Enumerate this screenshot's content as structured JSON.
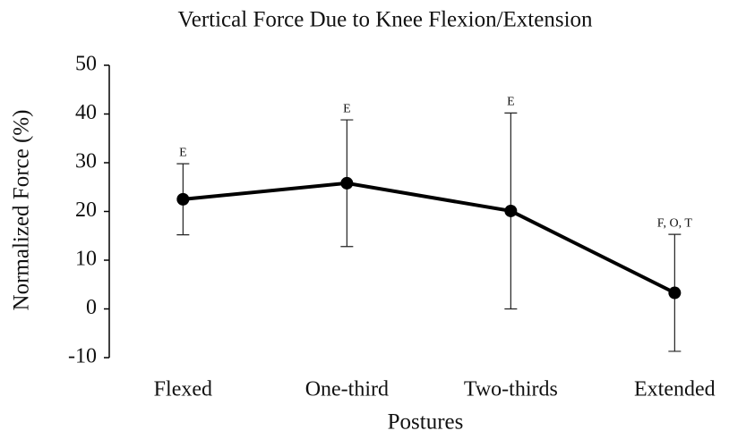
{
  "chart_data": {
    "type": "line",
    "title": "Vertical Force Due to Knee Flexion/Extension",
    "xlabel": "Postures",
    "ylabel": "Normalized Force (%)",
    "categories": [
      "Flexed",
      "One-third",
      "Two-thirds",
      "Extended"
    ],
    "series": [
      {
        "name": "Normalized Force",
        "color": "#000000",
        "values": [
          22.5,
          25.8,
          20.1,
          3.3
        ],
        "errors": [
          7.3,
          13,
          20.1,
          12
        ]
      }
    ],
    "annotations": [
      "E",
      "E",
      "E",
      "F, O, T"
    ],
    "ylim": [
      -10,
      50
    ],
    "yticks": [
      -10,
      0,
      10,
      20,
      30,
      40,
      50
    ],
    "grid": false
  }
}
